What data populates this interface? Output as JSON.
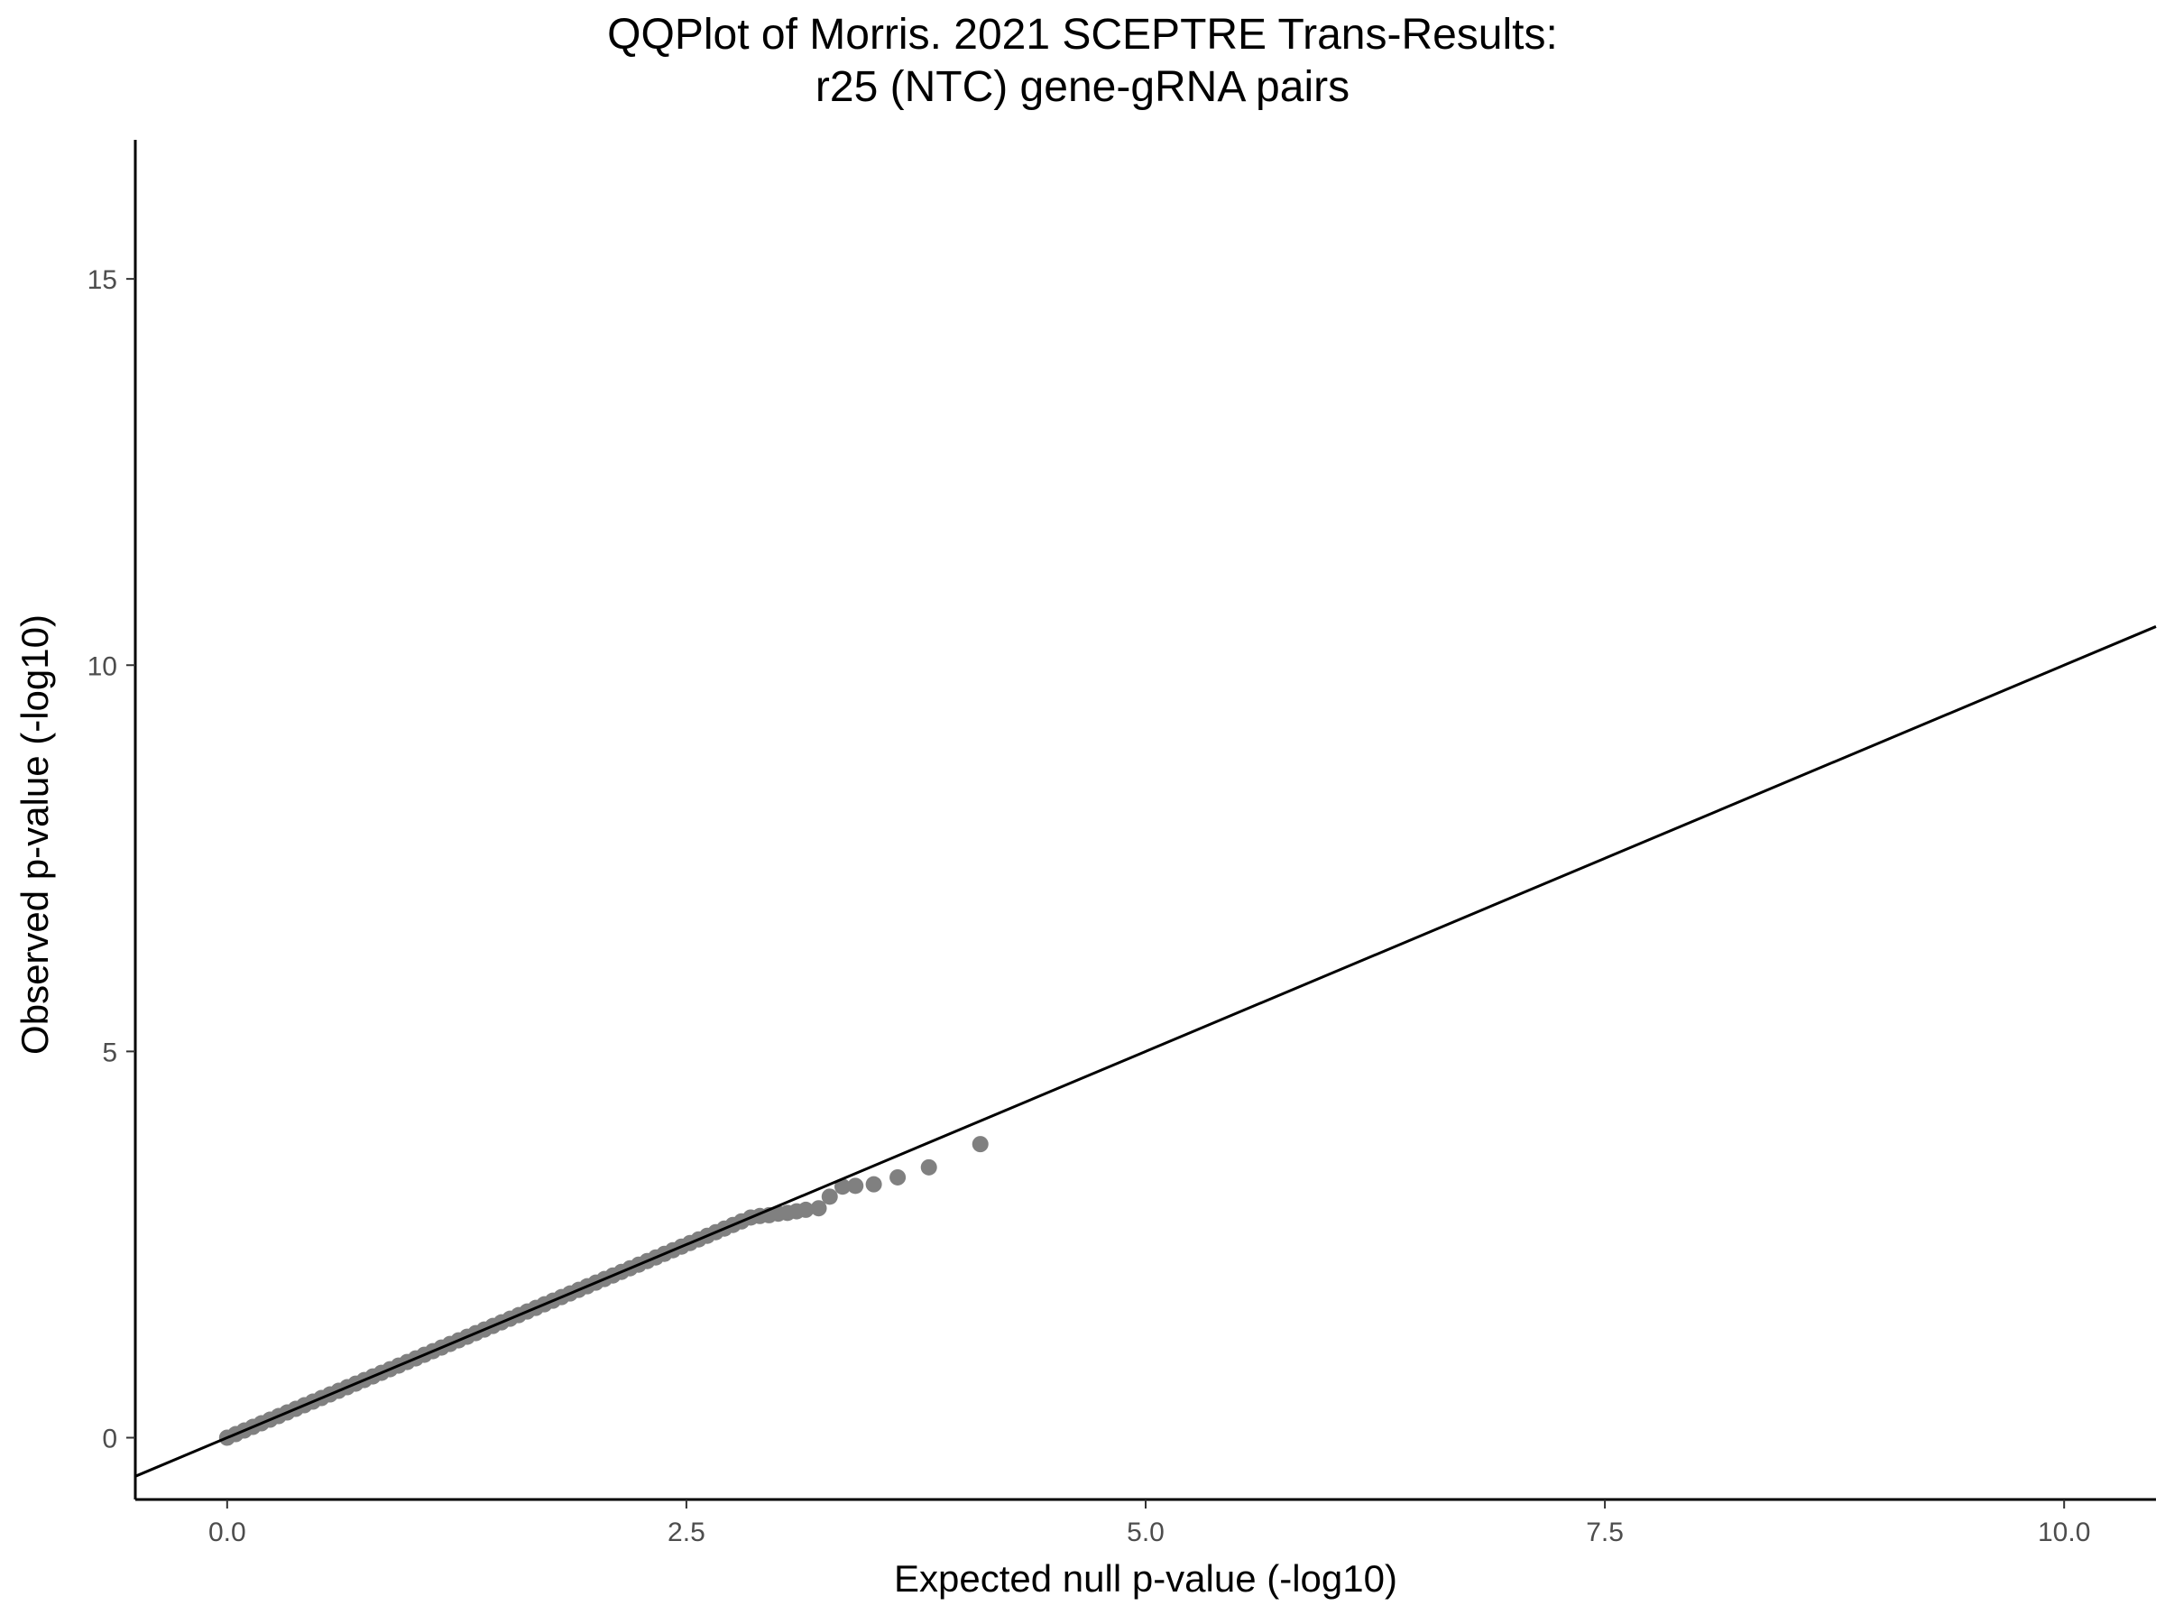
{
  "chart_data": {
    "type": "scatter",
    "title_line1": "QQPlot of Morris. 2021 SCEPTRE Trans-Results:",
    "title_line2": "r25 (NTC) gene-gRNA pairs",
    "xlabel": "Expected null p-value (-log10)",
    "ylabel": "Observed p-value (-log10)",
    "xlim": [
      -0.5,
      10.5
    ],
    "ylim": [
      -0.8,
      16.8
    ],
    "x_ticks": [
      0.0,
      2.5,
      5.0,
      7.5,
      10.0
    ],
    "x_tick_labels": [
      "0.0",
      "2.5",
      "5.0",
      "7.5",
      "10.0"
    ],
    "y_ticks": [
      0,
      5,
      10,
      15
    ],
    "y_tick_labels": [
      "0",
      "5",
      "10",
      "15"
    ],
    "grid": false,
    "reference_line": {
      "slope": 1,
      "intercept": 0,
      "color": "#000000"
    },
    "point_color": "#808080",
    "dense_segment": {
      "x": [
        0.0,
        2.8
      ],
      "y": [
        0.0,
        2.8
      ]
    },
    "points": [
      {
        "x": 2.85,
        "y": 2.85
      },
      {
        "x": 2.9,
        "y": 2.87
      },
      {
        "x": 2.95,
        "y": 2.88
      },
      {
        "x": 3.0,
        "y": 2.9
      },
      {
        "x": 3.05,
        "y": 2.91
      },
      {
        "x": 3.1,
        "y": 2.93
      },
      {
        "x": 3.15,
        "y": 2.95
      },
      {
        "x": 3.22,
        "y": 2.97
      },
      {
        "x": 3.28,
        "y": 3.12
      },
      {
        "x": 3.35,
        "y": 3.25
      },
      {
        "x": 3.42,
        "y": 3.26
      },
      {
        "x": 3.52,
        "y": 3.28
      },
      {
        "x": 3.65,
        "y": 3.37
      },
      {
        "x": 3.82,
        "y": 3.5
      },
      {
        "x": 4.1,
        "y": 3.8
      }
    ]
  }
}
